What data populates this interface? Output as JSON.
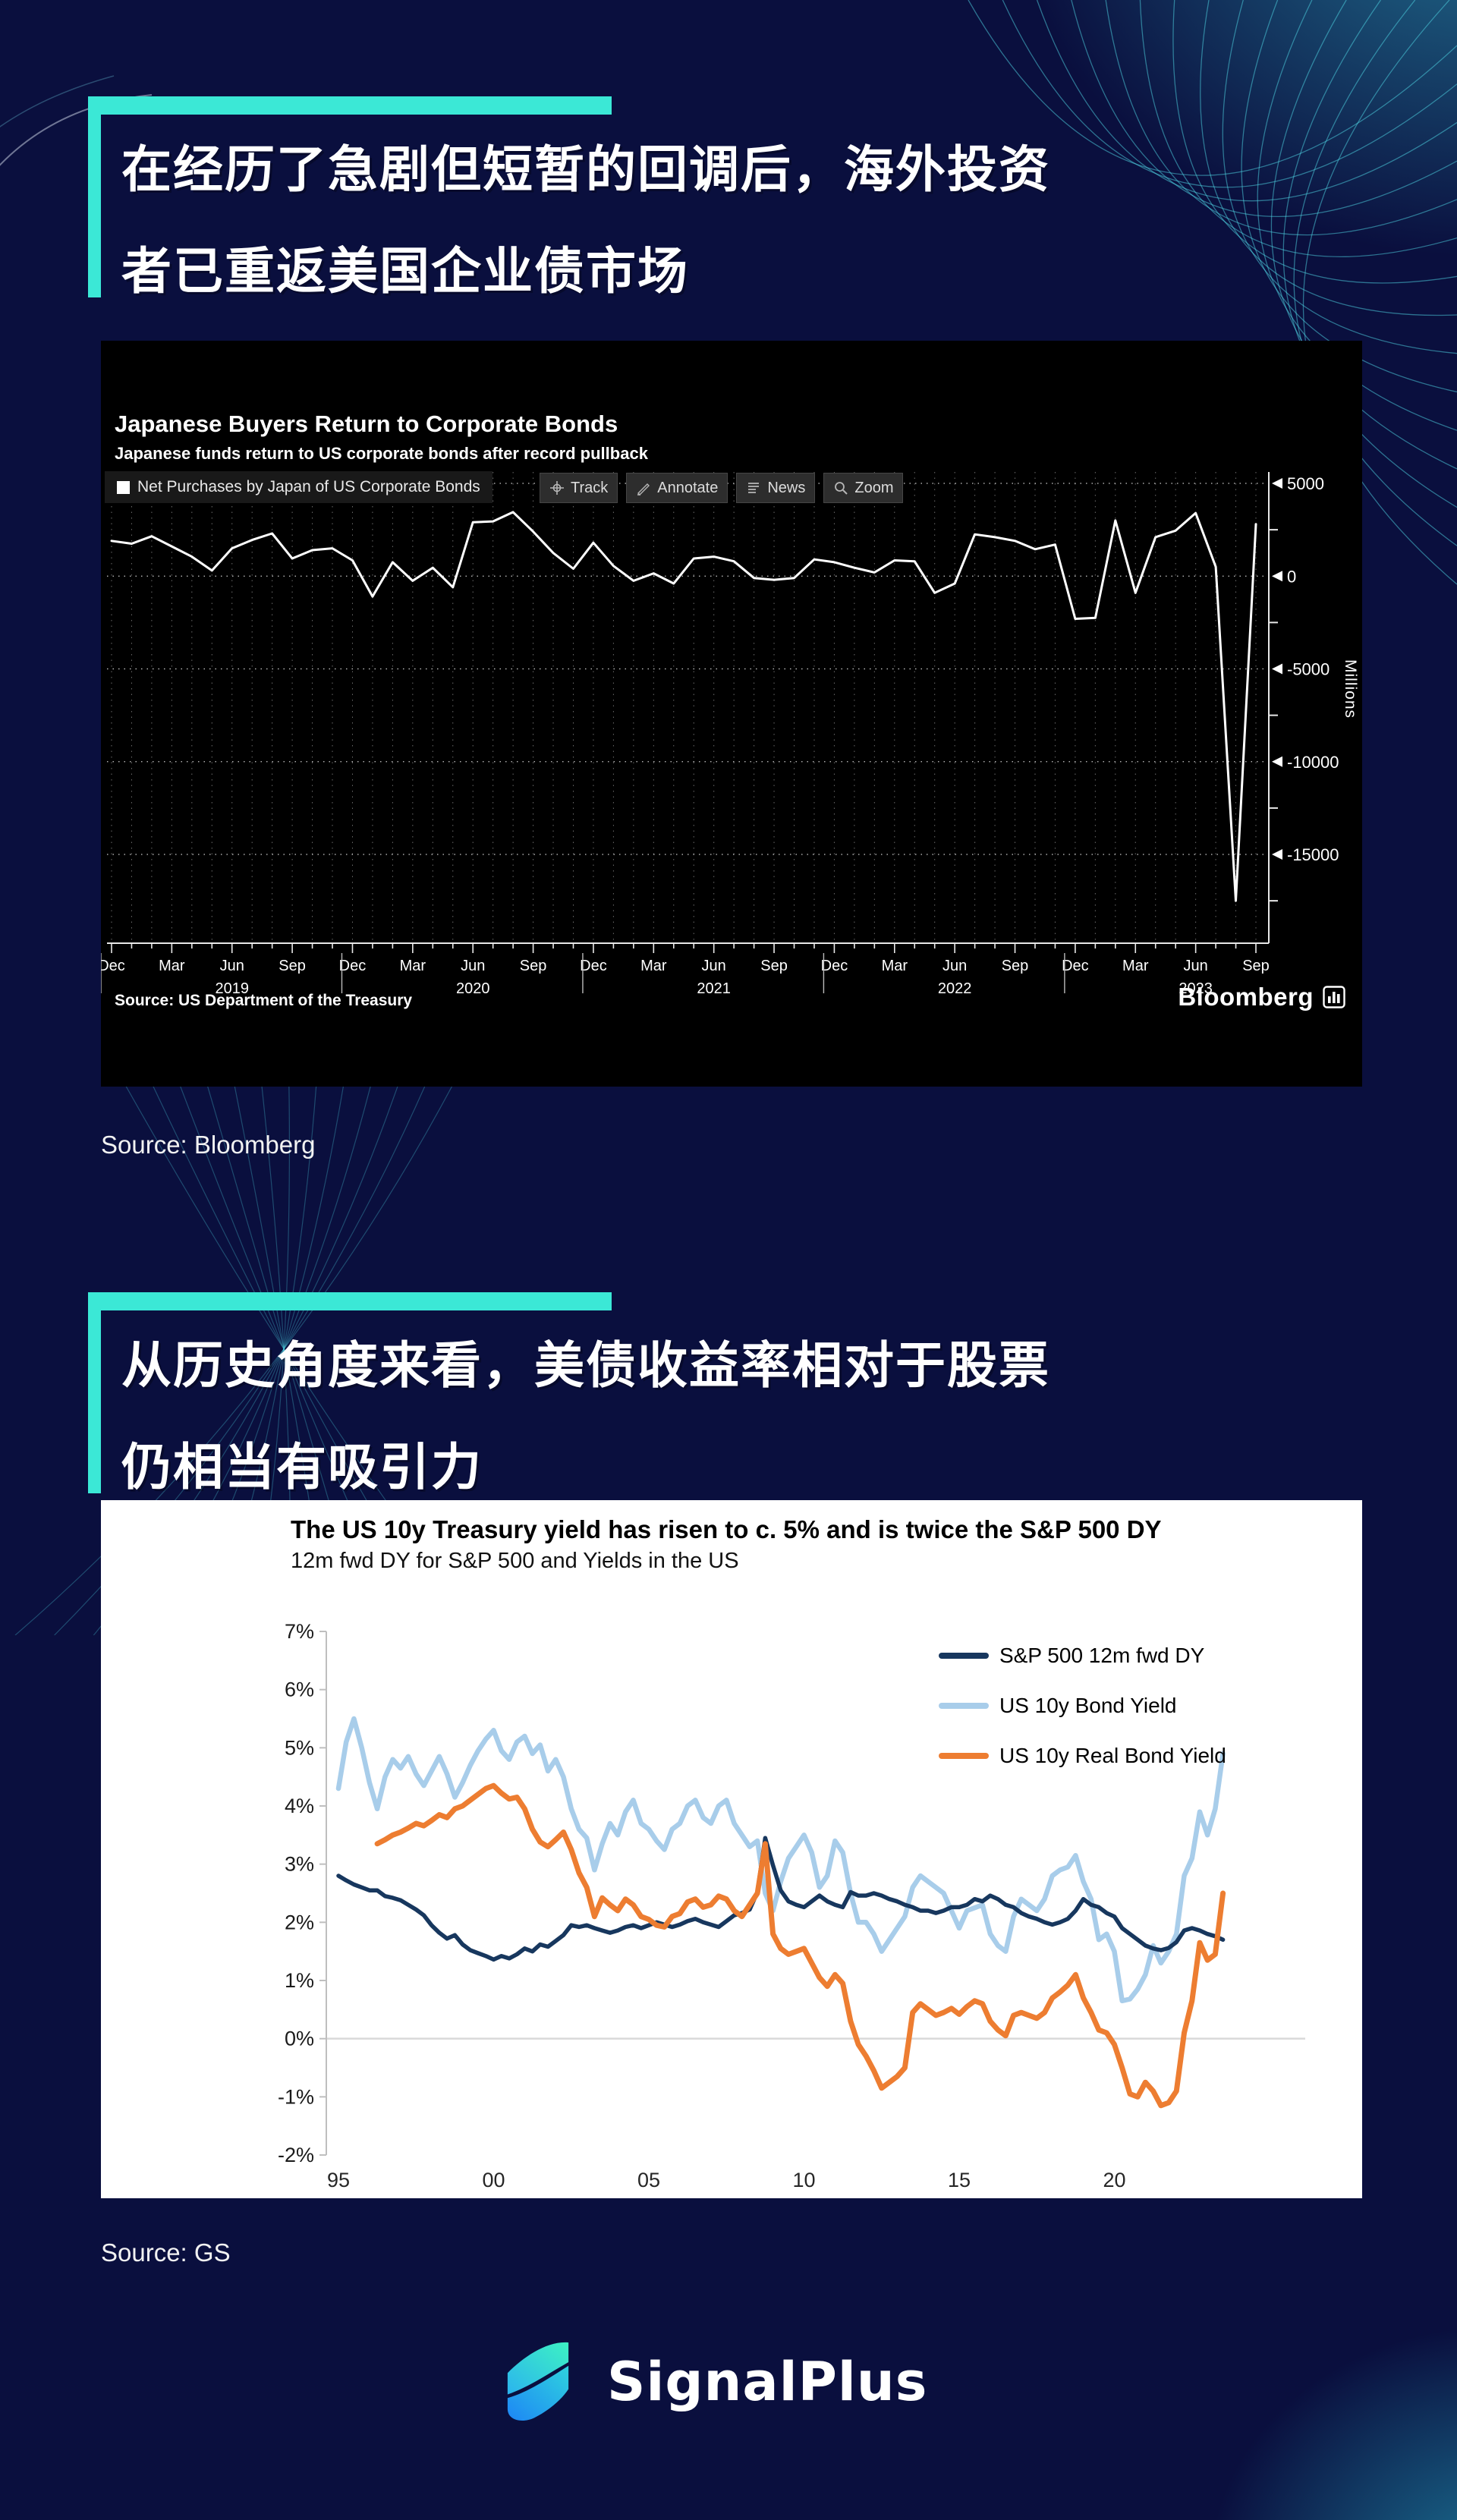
{
  "page": {
    "background": "#0a0f3e",
    "accent_teal": "#3be8d6"
  },
  "headline1": {
    "line1": "在经历了急剧但短暂的回调后，海外投资",
    "line2": "者已重返美国企业债市场"
  },
  "headline2": {
    "line1": "从历史角度来看，美债收益率相对于股票",
    "line2": "仍相当有吸引力"
  },
  "source_bloomberg": "Source: Bloomberg",
  "source_gs": "Source: GS",
  "brand": {
    "name": "SignalPlus"
  },
  "chart_data": [
    {
      "type": "line",
      "title": "Japanese Buyers Return to Corporate Bonds",
      "subtitle": "Japanese funds return to US corporate bonds after record pullback",
      "legend": "Net Purchases by Japan of US Corporate Bonds",
      "toolbar": [
        "Track",
        "Annotate",
        "News",
        "Zoom"
      ],
      "ylabel": "Millions",
      "source": "Source: US Department of the Treasury",
      "brand": "Bloomberg",
      "grid": "dotted",
      "background": "#000000",
      "x_start": "Dec 2018",
      "frequency": "monthly",
      "ylim": [
        -19800,
        5600
      ],
      "y_ticks": [
        5000,
        0,
        -5000,
        -10000,
        -15000
      ],
      "x_tick_labels": [
        "Dec",
        "Mar",
        "Jun",
        "Sep",
        "Dec",
        "Mar",
        "Jun",
        "Sep",
        "Dec",
        "Mar",
        "Jun",
        "Sep",
        "Dec",
        "Mar",
        "Jun",
        "Sep",
        "Dec",
        "Mar",
        "Jun",
        "Sep"
      ],
      "year_labels": [
        {
          "label": "2019",
          "month_index": 6
        },
        {
          "label": "2020",
          "month_index": 18
        },
        {
          "label": "2021",
          "month_index": 30
        },
        {
          "label": "2022",
          "month_index": 42
        },
        {
          "label": "2023",
          "month_index": 54
        }
      ],
      "series": [
        {
          "name": "Net Purchases by Japan of US Corporate Bonds",
          "color": "#ffffff",
          "values": [
            1900,
            1750,
            2150,
            1600,
            1050,
            300,
            1500,
            1950,
            2300,
            950,
            1400,
            1500,
            850,
            -1100,
            750,
            -250,
            450,
            -600,
            2900,
            2950,
            3450,
            2400,
            1250,
            400,
            1800,
            550,
            -250,
            150,
            -400,
            950,
            1050,
            800,
            -100,
            -200,
            -100,
            900,
            750,
            450,
            200,
            850,
            800,
            -900,
            -400,
            2250,
            2100,
            1900,
            1450,
            1700,
            -2300,
            -2250,
            3000,
            -900,
            2100,
            2450,
            3400,
            500,
            -17500,
            2800
          ]
        }
      ]
    },
    {
      "type": "line",
      "title": "The US 10y Treasury yield has risen to c. 5% and is twice the S&P 500 DY",
      "subtitle": "12m fwd DY for S&P 500 and Yields in the US",
      "background": "#ffffff",
      "legend_position": "top-right",
      "ylim": [
        -2,
        7
      ],
      "y_ticks": [
        "7%",
        "6%",
        "5%",
        "4%",
        "3%",
        "2%",
        "1%",
        "0%",
        "-1%",
        "-2%"
      ],
      "x_start": 1995,
      "x_step": 0.25,
      "x_ticks": [
        {
          "label": "95",
          "year": 1995
        },
        {
          "label": "00",
          "year": 2000
        },
        {
          "label": "05",
          "year": 2005
        },
        {
          "label": "10",
          "year": 2010
        },
        {
          "label": "15",
          "year": 2015
        },
        {
          "label": "20",
          "year": 2020
        }
      ],
      "series": [
        {
          "name": "S&P 500 12m fwd DY",
          "color": "#17375e",
          "values": [
            2.8,
            2.72,
            2.65,
            2.6,
            2.55,
            2.55,
            2.45,
            2.42,
            2.38,
            2.3,
            2.22,
            2.12,
            1.95,
            1.82,
            1.72,
            1.78,
            1.62,
            1.52,
            1.47,
            1.42,
            1.36,
            1.42,
            1.38,
            1.45,
            1.55,
            1.5,
            1.62,
            1.58,
            1.68,
            1.78,
            1.95,
            1.92,
            1.95,
            1.9,
            1.86,
            1.82,
            1.86,
            1.92,
            1.95,
            1.9,
            1.95,
            2.0,
            1.96,
            1.92,
            1.96,
            2.02,
            2.06,
            2.0,
            1.96,
            1.92,
            2.02,
            2.12,
            2.16,
            2.22,
            2.52,
            3.45,
            2.98,
            2.55,
            2.36,
            2.3,
            2.26,
            2.36,
            2.46,
            2.36,
            2.3,
            2.26,
            2.52,
            2.46,
            2.46,
            2.5,
            2.46,
            2.4,
            2.36,
            2.3,
            2.26,
            2.2,
            2.2,
            2.16,
            2.2,
            2.26,
            2.26,
            2.3,
            2.4,
            2.36,
            2.46,
            2.4,
            2.3,
            2.26,
            2.16,
            2.1,
            2.06,
            2.0,
            1.96,
            2.0,
            2.06,
            2.2,
            2.4,
            2.3,
            2.26,
            2.16,
            2.1,
            1.9,
            1.8,
            1.7,
            1.6,
            1.55,
            1.52,
            1.56,
            1.66,
            1.86,
            1.9,
            1.86,
            1.8,
            1.76,
            1.7
          ]
        },
        {
          "name": "US 10y Bond Yield",
          "color": "#a8cdea",
          "values": [
            4.3,
            5.1,
            5.5,
            5.0,
            4.4,
            3.95,
            4.5,
            4.8,
            4.65,
            4.85,
            4.55,
            4.35,
            4.6,
            4.85,
            4.55,
            4.15,
            4.4,
            4.7,
            4.95,
            5.15,
            5.3,
            4.95,
            4.8,
            5.1,
            5.2,
            4.9,
            5.05,
            4.6,
            4.8,
            4.5,
            3.95,
            3.6,
            3.45,
            2.9,
            3.35,
            3.7,
            3.5,
            3.9,
            4.1,
            3.7,
            3.6,
            3.4,
            3.25,
            3.6,
            3.7,
            4.0,
            4.1,
            3.8,
            3.7,
            4.0,
            4.1,
            3.7,
            3.5,
            3.3,
            3.4,
            2.5,
            2.2,
            2.7,
            3.1,
            3.3,
            3.5,
            3.2,
            2.6,
            2.8,
            3.4,
            3.2,
            2.5,
            2.0,
            2.0,
            1.8,
            1.5,
            1.7,
            1.9,
            2.1,
            2.6,
            2.8,
            2.7,
            2.6,
            2.5,
            2.2,
            1.9,
            2.2,
            2.25,
            2.3,
            1.8,
            1.6,
            1.5,
            2.1,
            2.4,
            2.3,
            2.2,
            2.4,
            2.8,
            2.9,
            2.95,
            3.15,
            2.7,
            2.4,
            1.7,
            1.8,
            1.5,
            0.65,
            0.68,
            0.85,
            1.1,
            1.6,
            1.3,
            1.5,
            1.8,
            2.8,
            3.1,
            3.9,
            3.5,
            3.95,
            4.9
          ]
        },
        {
          "name": "US 10y Real Bond Yield",
          "color": "#ed7d31",
          "values": [
            null,
            null,
            null,
            null,
            null,
            3.35,
            3.42,
            3.5,
            3.55,
            3.62,
            3.7,
            3.66,
            3.75,
            3.85,
            3.8,
            3.95,
            4.0,
            4.1,
            4.2,
            4.3,
            4.35,
            4.22,
            4.12,
            4.15,
            3.95,
            3.6,
            3.38,
            3.3,
            3.42,
            3.55,
            3.25,
            2.85,
            2.6,
            2.1,
            2.42,
            2.3,
            2.2,
            2.4,
            2.3,
            2.1,
            2.05,
            1.95,
            1.92,
            2.1,
            2.15,
            2.35,
            2.4,
            2.26,
            2.3,
            2.45,
            2.4,
            2.2,
            2.1,
            2.3,
            2.5,
            3.35,
            1.8,
            1.55,
            1.45,
            1.5,
            1.55,
            1.3,
            1.05,
            0.9,
            1.1,
            0.95,
            0.3,
            -0.1,
            -0.3,
            -0.55,
            -0.85,
            -0.75,
            -0.65,
            -0.5,
            0.45,
            0.6,
            0.5,
            0.4,
            0.45,
            0.52,
            0.42,
            0.55,
            0.65,
            0.6,
            0.3,
            0.15,
            0.05,
            0.4,
            0.45,
            0.4,
            0.35,
            0.45,
            0.7,
            0.8,
            0.92,
            1.1,
            0.7,
            0.45,
            0.15,
            0.1,
            -0.1,
            -0.5,
            -0.95,
            -1.0,
            -0.75,
            -0.9,
            -1.15,
            -1.1,
            -0.9,
            0.1,
            0.65,
            1.65,
            1.35,
            1.45,
            2.5
          ]
        }
      ]
    }
  ]
}
